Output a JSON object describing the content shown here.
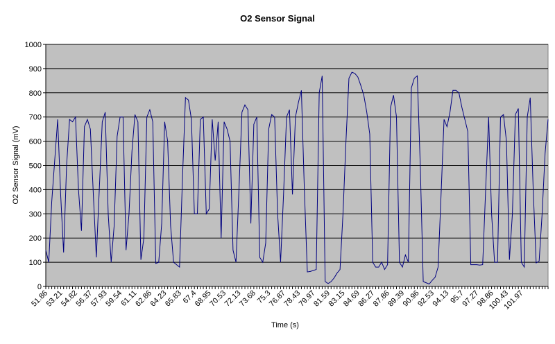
{
  "chart_data": {
    "type": "line",
    "title": "O2 Sensor Signal",
    "x_label": "Time (s)",
    "y_label": "O2 Sensor Signal (mV)",
    "categories": [
      "51.86",
      null,
      null,
      null,
      null,
      "53.21",
      null,
      null,
      null,
      null,
      "54.82",
      null,
      null,
      null,
      null,
      "56.37",
      null,
      null,
      null,
      null,
      "57.93",
      null,
      null,
      null,
      null,
      "59.54",
      null,
      null,
      null,
      null,
      "61.11",
      null,
      null,
      null,
      null,
      "62.86",
      null,
      null,
      null,
      null,
      "64.23",
      null,
      null,
      null,
      null,
      "65.83",
      null,
      null,
      null,
      null,
      "67.4",
      null,
      null,
      null,
      null,
      "68.95",
      null,
      null,
      null,
      null,
      "70.53",
      null,
      null,
      null,
      null,
      "72.13",
      null,
      null,
      null,
      null,
      "73.68",
      null,
      null,
      null,
      null,
      "75.3",
      null,
      null,
      null,
      null,
      "76.87",
      null,
      null,
      null,
      null,
      "78.43",
      null,
      null,
      null,
      null,
      "79.97",
      null,
      null,
      null,
      null,
      "81.59",
      null,
      null,
      null,
      null,
      "83.15",
      null,
      null,
      null,
      null,
      "84.69",
      null,
      null,
      null,
      null,
      "86.27",
      null,
      null,
      null,
      null,
      "87.86",
      null,
      null,
      null,
      null,
      "89.39",
      null,
      null,
      null,
      null,
      "90.96",
      null,
      null,
      null,
      null,
      "92.53",
      null,
      null,
      null,
      null,
      "94.13",
      null,
      null,
      null,
      null,
      "95.7",
      null,
      null,
      null,
      null,
      "97.27",
      null,
      null,
      null,
      null,
      "98.86",
      null,
      null,
      null,
      null,
      "100.43",
      null,
      null,
      null,
      null,
      "101.97",
      null,
      null,
      null,
      null,
      null,
      null,
      null,
      null,
      null
    ],
    "values": [
      150,
      100,
      350,
      520,
      690,
      380,
      140,
      500,
      690,
      680,
      700,
      400,
      230,
      660,
      690,
      650,
      380,
      120,
      400,
      680,
      720,
      300,
      100,
      250,
      620,
      700,
      700,
      150,
      300,
      560,
      710,
      680,
      110,
      200,
      700,
      730,
      680,
      95,
      100,
      260,
      680,
      600,
      250,
      100,
      90,
      80,
      450,
      780,
      770,
      690,
      300,
      300,
      690,
      700,
      300,
      320,
      690,
      520,
      680,
      200,
      680,
      650,
      600,
      150,
      100,
      400,
      720,
      750,
      730,
      260,
      670,
      700,
      120,
      100,
      180,
      650,
      710,
      700,
      300,
      100,
      380,
      700,
      730,
      380,
      700,
      760,
      810,
      400,
      60,
      62,
      66,
      70,
      800,
      870,
      20,
      12,
      20,
      35,
      55,
      70,
      300,
      600,
      860,
      885,
      880,
      865,
      830,
      790,
      720,
      630,
      100,
      80,
      80,
      100,
      70,
      90,
      740,
      790,
      700,
      100,
      80,
      130,
      100,
      820,
      860,
      870,
      500,
      20,
      15,
      10,
      25,
      38,
      80,
      380,
      690,
      660,
      720,
      810,
      810,
      800,
      740,
      690,
      640,
      90,
      90,
      90,
      88,
      90,
      400,
      700,
      300,
      100,
      100,
      700,
      710,
      600,
      110,
      300,
      710,
      735,
      100,
      80,
      700,
      780,
      400,
      97,
      105,
      300,
      550,
      690
    ],
    "color": "#000080",
    "plot_background": "#c0c0c0",
    "grid": true,
    "ylim": [
      0,
      1000
    ],
    "yticks": [
      0,
      100,
      200,
      300,
      400,
      500,
      600,
      700,
      800,
      900,
      1000
    ]
  }
}
